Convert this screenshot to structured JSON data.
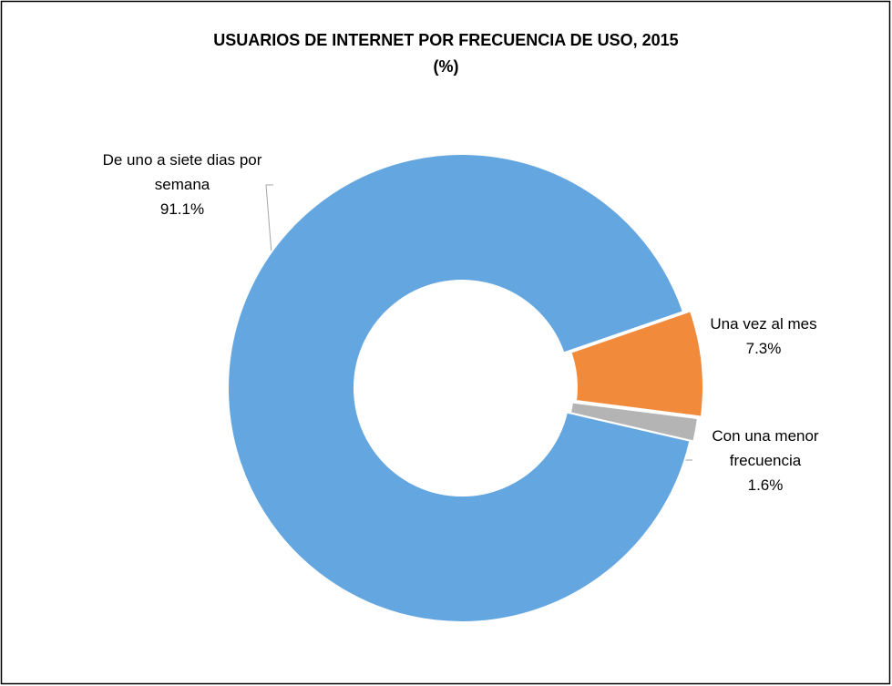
{
  "chart_data": {
    "type": "donut",
    "title": "USUARIOS DE INTERNET POR FRECUENCIA DE USO, 2015",
    "subtitle": "(%)",
    "categories": [
      "De uno a siete dias por semana",
      "Una vez al mes",
      "Con una menor frecuencia"
    ],
    "values": [
      91.1,
      7.3,
      1.6
    ],
    "value_labels": [
      "91.1%",
      "7.3%",
      "1.6%"
    ],
    "colors": [
      "#64a6e0",
      "#f28a3c",
      "#b4b4b4"
    ]
  }
}
